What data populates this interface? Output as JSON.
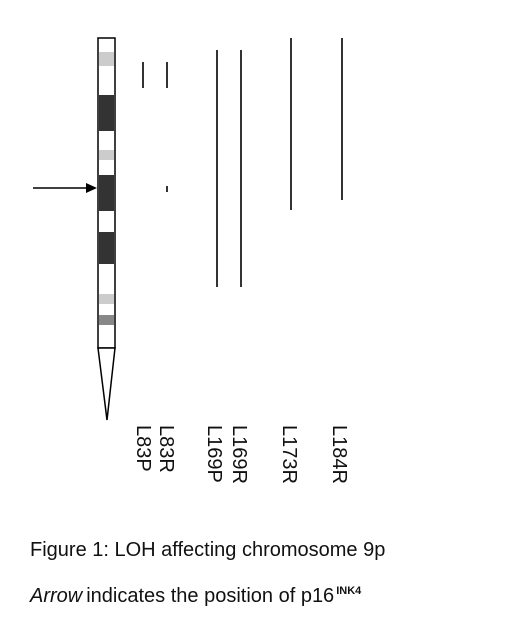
{
  "figure": {
    "samples": [
      "L83P",
      "L83R",
      "L169P",
      "L169R",
      "L173R",
      "L184R"
    ],
    "caption": {
      "title": "Figure 1: LOH affecting chromosome 9p",
      "arrow_word": "Arrow",
      "text": "indicates the position of p16",
      "superscript": "INK4"
    }
  }
}
